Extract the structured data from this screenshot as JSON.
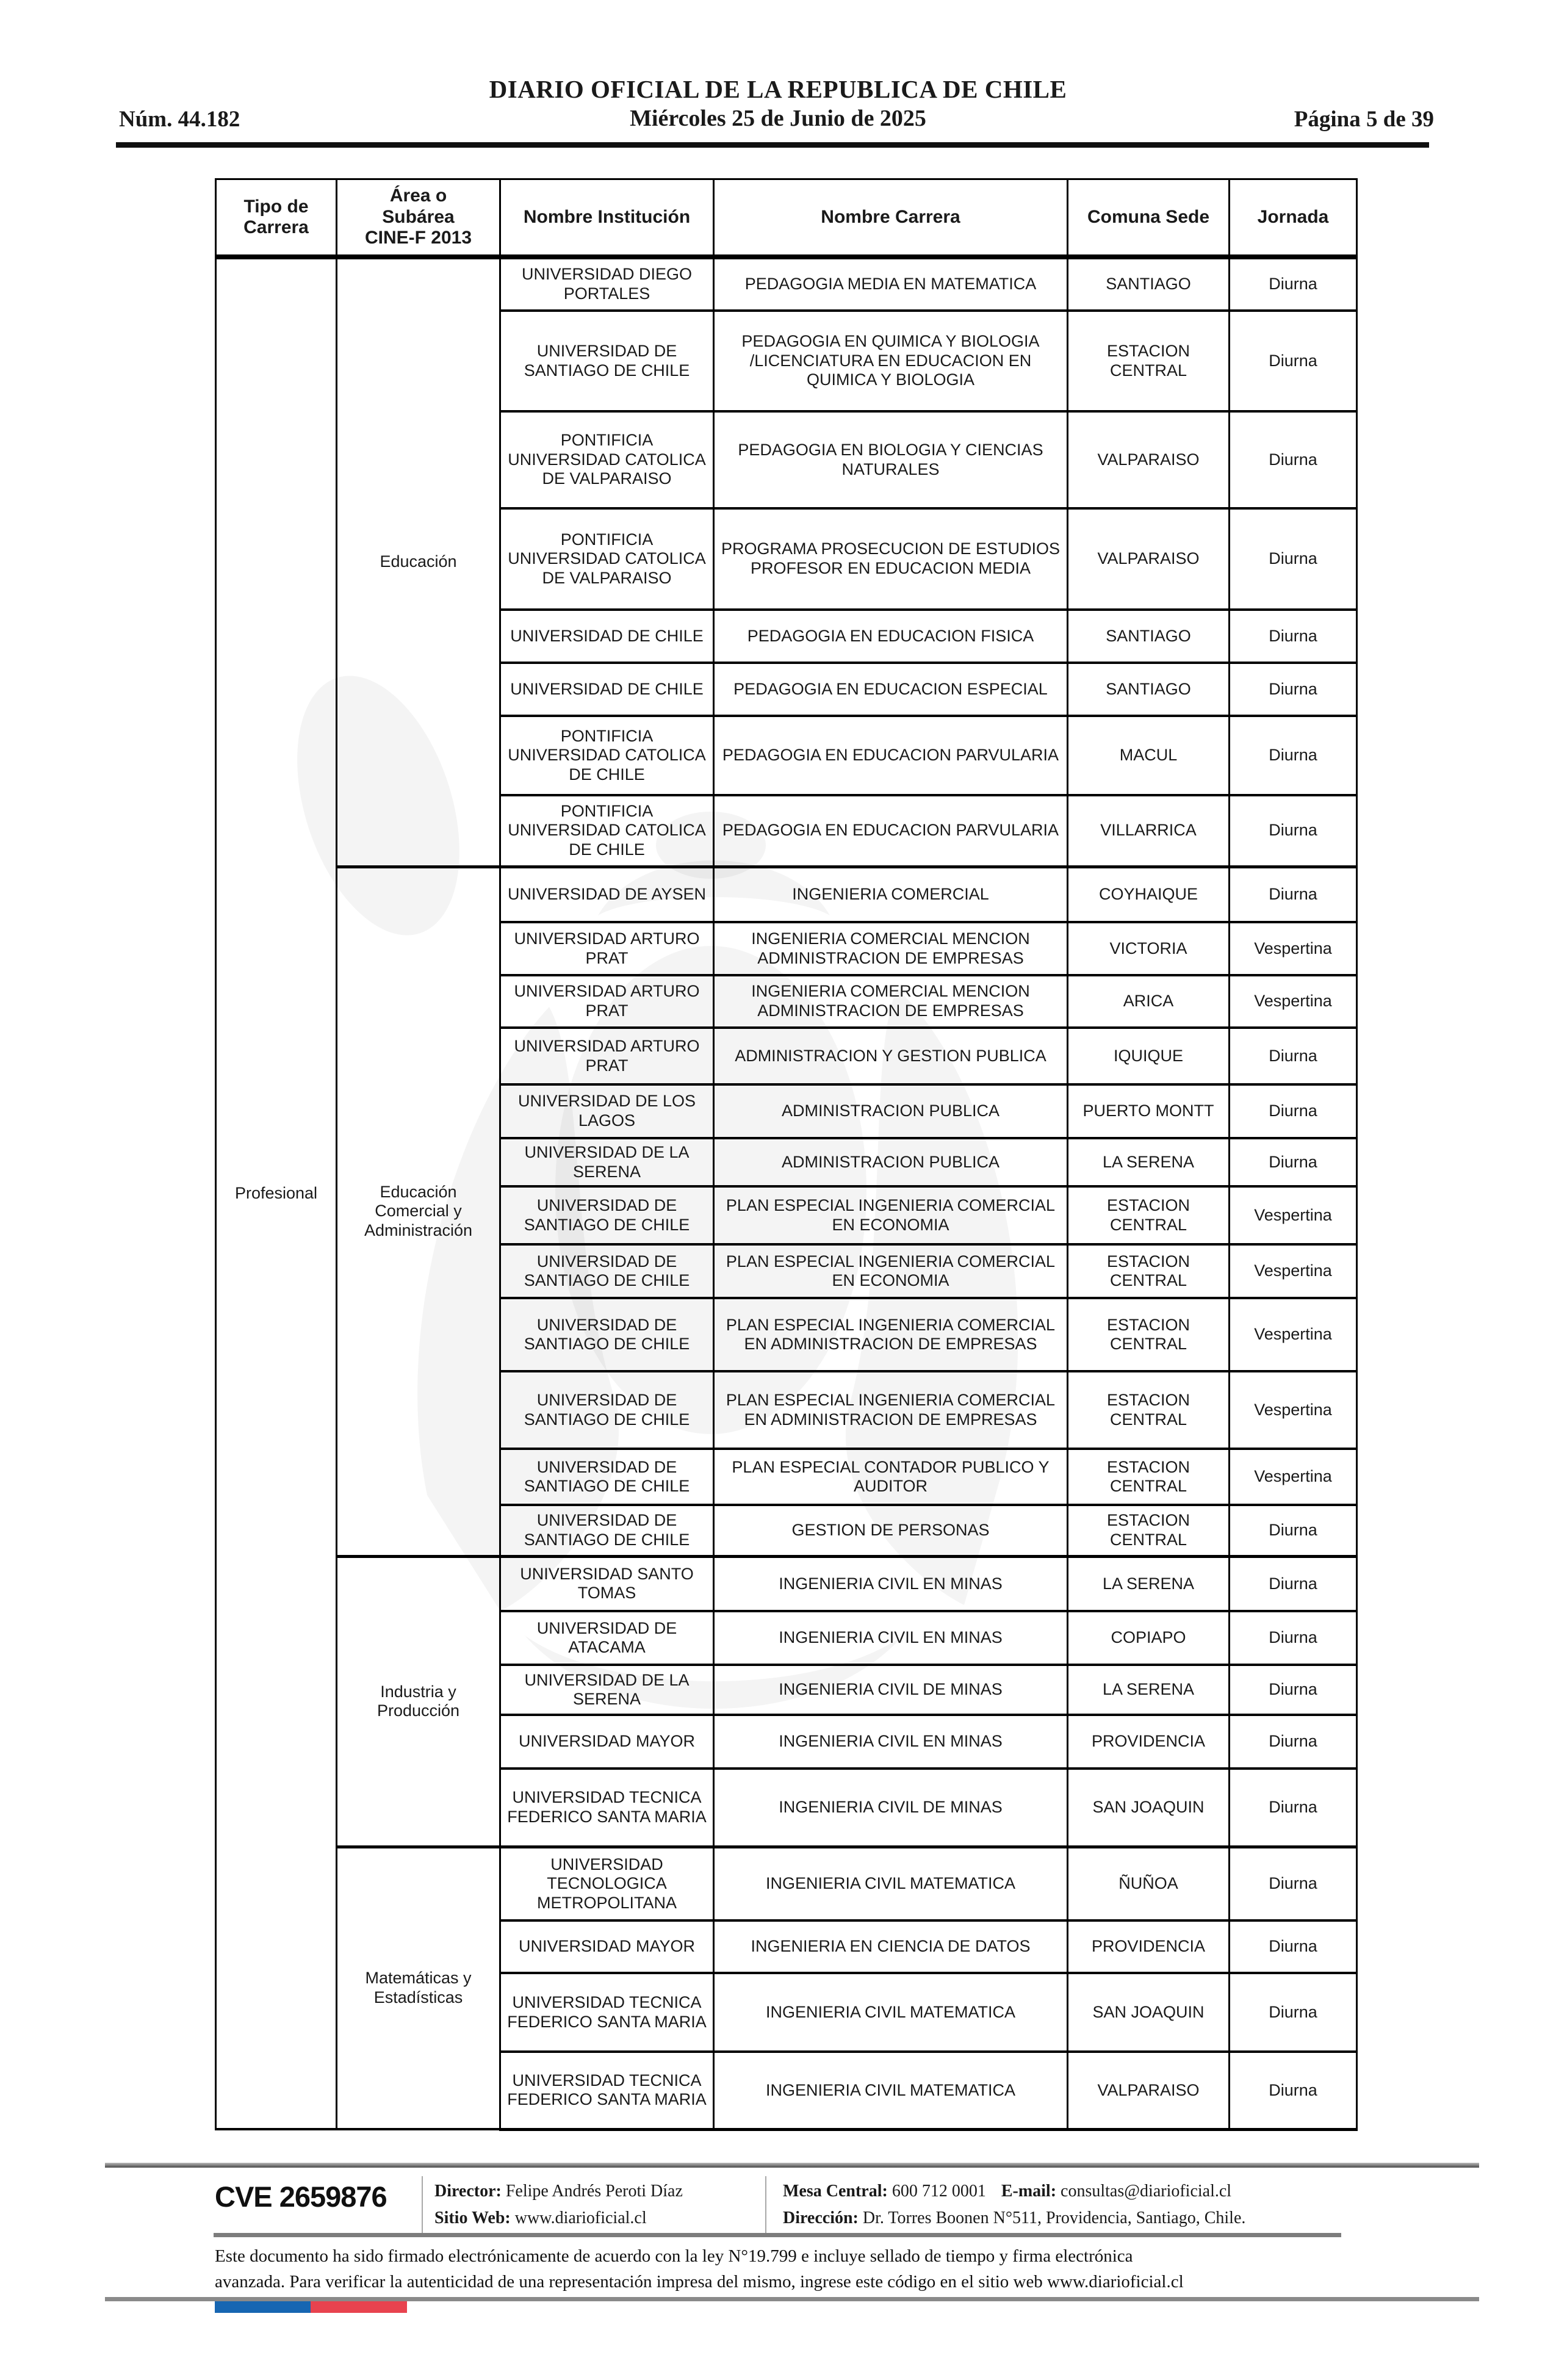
{
  "page_header": {
    "num": "Núm. 44.182",
    "title": "DIARIO OFICIAL DE LA REPUBLICA DE CHILE",
    "date": "Miércoles 25 de Junio de 2025",
    "page_info": "Página 5 de 39"
  },
  "table": {
    "columns": [
      "Tipo de Carrera",
      "Área o Subárea CINE-F 2013",
      "Nombre Institución",
      "Nombre Carrera",
      "Comuna Sede",
      "Jornada"
    ],
    "tipo_carrera": "Profesional",
    "sections": [
      {
        "area": "Educación",
        "rows": [
          {
            "institucion": "UNIVERSIDAD DIEGO PORTALES",
            "carrera": "PEDAGOGIA MEDIA EN MATEMATICA",
            "comuna": "SANTIAGO",
            "jornada": "Diurna"
          },
          {
            "institucion": "UNIVERSIDAD DE SANTIAGO DE CHILE",
            "carrera": "PEDAGOGIA EN QUIMICA Y BIOLOGIA /LICENCIATURA EN EDUCACION EN QUIMICA Y BIOLOGIA",
            "comuna": "ESTACION CENTRAL",
            "jornada": "Diurna"
          },
          {
            "institucion": "PONTIFICIA UNIVERSIDAD CATOLICA DE VALPARAISO",
            "carrera": "PEDAGOGIA EN BIOLOGIA Y CIENCIAS NATURALES",
            "comuna": "VALPARAISO",
            "jornada": "Diurna"
          },
          {
            "institucion": "PONTIFICIA UNIVERSIDAD CATOLICA DE VALPARAISO",
            "carrera": "PROGRAMA PROSECUCION DE ESTUDIOS PROFESOR EN EDUCACION MEDIA",
            "comuna": "VALPARAISO",
            "jornada": "Diurna"
          },
          {
            "institucion": "UNIVERSIDAD DE CHILE",
            "carrera": "PEDAGOGIA EN EDUCACION FISICA",
            "comuna": "SANTIAGO",
            "jornada": "Diurna"
          },
          {
            "institucion": "UNIVERSIDAD DE CHILE",
            "carrera": "PEDAGOGIA EN EDUCACION ESPECIAL",
            "comuna": "SANTIAGO",
            "jornada": "Diurna"
          },
          {
            "institucion": "PONTIFICIA UNIVERSIDAD CATOLICA DE CHILE",
            "carrera": "PEDAGOGIA EN EDUCACION PARVULARIA",
            "comuna": "MACUL",
            "jornada": "Diurna"
          },
          {
            "institucion": "PONTIFICIA UNIVERSIDAD CATOLICA DE CHILE",
            "carrera": "PEDAGOGIA EN EDUCACION PARVULARIA",
            "comuna": "VILLARRICA",
            "jornada": "Diurna"
          }
        ]
      },
      {
        "area": "Educación Comercial y Administración",
        "rows": [
          {
            "institucion": "UNIVERSIDAD DE AYSEN",
            "carrera": "INGENIERIA COMERCIAL",
            "comuna": "COYHAIQUE",
            "jornada": "Diurna"
          },
          {
            "institucion": "UNIVERSIDAD ARTURO PRAT",
            "carrera": "INGENIERIA COMERCIAL MENCION ADMINISTRACION DE EMPRESAS",
            "comuna": "VICTORIA",
            "jornada": "Vespertina"
          },
          {
            "institucion": "UNIVERSIDAD ARTURO PRAT",
            "carrera": "INGENIERIA COMERCIAL MENCION ADMINISTRACION DE EMPRESAS",
            "comuna": "ARICA",
            "jornada": "Vespertina"
          },
          {
            "institucion": "UNIVERSIDAD ARTURO PRAT",
            "carrera": "ADMINISTRACION Y GESTION PUBLICA",
            "comuna": "IQUIQUE",
            "jornada": "Diurna"
          },
          {
            "institucion": "UNIVERSIDAD DE LOS LAGOS",
            "carrera": "ADMINISTRACION PUBLICA",
            "comuna": "PUERTO MONTT",
            "jornada": "Diurna"
          },
          {
            "institucion": "UNIVERSIDAD DE LA SERENA",
            "carrera": "ADMINISTRACION PUBLICA",
            "comuna": "LA SERENA",
            "jornada": "Diurna"
          },
          {
            "institucion": "UNIVERSIDAD DE SANTIAGO DE CHILE",
            "carrera": "PLAN ESPECIAL INGENIERIA COMERCIAL EN ECONOMIA",
            "comuna": "ESTACION CENTRAL",
            "jornada": "Vespertina"
          },
          {
            "institucion": "UNIVERSIDAD DE SANTIAGO DE CHILE",
            "carrera": "PLAN ESPECIAL INGENIERIA COMERCIAL EN ECONOMIA",
            "comuna": "ESTACION CENTRAL",
            "jornada": "Vespertina"
          },
          {
            "institucion": "UNIVERSIDAD DE SANTIAGO DE CHILE",
            "carrera": "PLAN ESPECIAL INGENIERIA COMERCIAL EN ADMINISTRACION DE EMPRESAS",
            "comuna": "ESTACION CENTRAL",
            "jornada": "Vespertina"
          },
          {
            "institucion": "UNIVERSIDAD DE SANTIAGO DE CHILE",
            "carrera": "PLAN ESPECIAL INGENIERIA COMERCIAL EN ADMINISTRACION DE EMPRESAS",
            "comuna": "ESTACION CENTRAL",
            "jornada": "Vespertina"
          },
          {
            "institucion": "UNIVERSIDAD DE SANTIAGO DE CHILE",
            "carrera": "PLAN ESPECIAL CONTADOR PUBLICO Y AUDITOR",
            "comuna": "ESTACION CENTRAL",
            "jornada": "Vespertina"
          },
          {
            "institucion": "UNIVERSIDAD DE SANTIAGO DE CHILE",
            "carrera": "GESTION DE PERSONAS",
            "comuna": "ESTACION CENTRAL",
            "jornada": "Diurna"
          }
        ]
      },
      {
        "area": "Industria y Producción",
        "rows": [
          {
            "institucion": "UNIVERSIDAD SANTO TOMAS",
            "carrera": "INGENIERIA CIVIL EN MINAS",
            "comuna": "LA SERENA",
            "jornada": "Diurna"
          },
          {
            "institucion": "UNIVERSIDAD DE ATACAMA",
            "carrera": "INGENIERIA CIVIL EN MINAS",
            "comuna": "COPIAPO",
            "jornada": "Diurna"
          },
          {
            "institucion": "UNIVERSIDAD DE LA SERENA",
            "carrera": "INGENIERIA CIVIL DE MINAS",
            "comuna": "LA SERENA",
            "jornada": "Diurna"
          },
          {
            "institucion": "UNIVERSIDAD MAYOR",
            "carrera": "INGENIERIA CIVIL EN MINAS",
            "comuna": "PROVIDENCIA",
            "jornada": "Diurna"
          },
          {
            "institucion": "UNIVERSIDAD TECNICA FEDERICO SANTA MARIA",
            "carrera": "INGENIERIA CIVIL DE MINAS",
            "comuna": "SAN JOAQUIN",
            "jornada": "Diurna"
          }
        ]
      },
      {
        "area": "Matemáticas y Estadísticas",
        "rows": [
          {
            "institucion": "UNIVERSIDAD TECNOLOGICA METROPOLITANA",
            "carrera": "INGENIERIA CIVIL MATEMATICA",
            "comuna": "ÑUÑOA",
            "jornada": "Diurna"
          },
          {
            "institucion": "UNIVERSIDAD MAYOR",
            "carrera": "INGENIERIA EN CIENCIA DE DATOS",
            "comuna": "PROVIDENCIA",
            "jornada": "Diurna"
          },
          {
            "institucion": "UNIVERSIDAD TECNICA FEDERICO SANTA MARIA",
            "carrera": "INGENIERIA CIVIL MATEMATICA",
            "comuna": "SAN JOAQUIN",
            "jornada": "Diurna"
          },
          {
            "institucion": "UNIVERSIDAD TECNICA FEDERICO SANTA MARIA",
            "carrera": "INGENIERIA CIVIL MATEMATICA",
            "comuna": "VALPARAISO",
            "jornada": "Diurna"
          }
        ]
      }
    ]
  },
  "footer": {
    "cve": "CVE 2659876",
    "director_label": "Director:",
    "director": "Felipe Andrés Peroti Díaz",
    "sitio_web_label": "Sitio Web:",
    "sitio_web": "www.diarioficial.cl",
    "mesa_central_label": "Mesa Central:",
    "mesa_central": "600 712 0001",
    "email_label": "E-mail:",
    "email": "consultas@diarioficial.cl",
    "direccion_label": "Dirección:",
    "direccion": "Dr. Torres Boonen N°511, Providencia, Santiago, Chile.",
    "disclaimer_line1": "Este documento ha sido firmado electrónicamente de acuerdo con la ley N°19.799 e incluye sellado de tiempo y firma electrónica",
    "disclaimer_line2": "avanzada. Para verificar la autenticidad de una representación impresa del mismo, ingrese este código en el sitio web www.diarioficial.cl",
    "flag_colors": {
      "blue": "#1766b2",
      "red": "#e8434f"
    }
  }
}
